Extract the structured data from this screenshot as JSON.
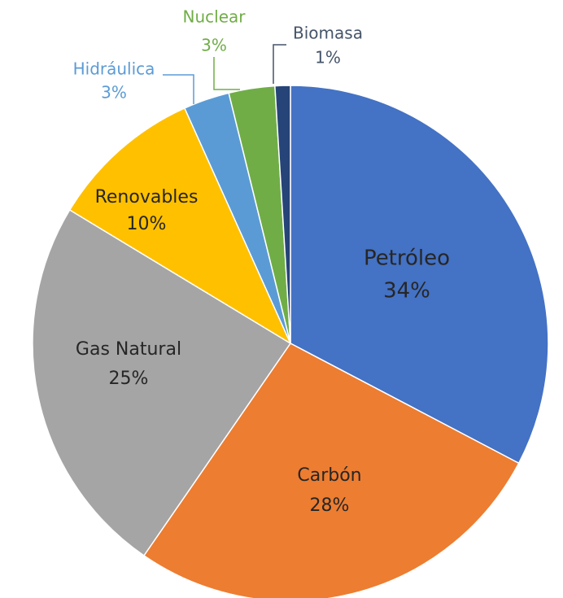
{
  "chart_data": {
    "type": "pie",
    "categories": [
      "Petróleo",
      "Carbón",
      "Gas Natural",
      "Renovables",
      "Hidráulica",
      "Nuclear",
      "Biomasa"
    ],
    "values": [
      34,
      28,
      25,
      10,
      3,
      3,
      1
    ],
    "value_labels": [
      "34%",
      "28%",
      "25%",
      "10%",
      "3%",
      "3%",
      "1%"
    ],
    "colors": [
      "#4472c4",
      "#ed7d31",
      "#a5a5a5",
      "#ffc000",
      "#5b9bd5",
      "#70ad47",
      "#264478"
    ]
  }
}
